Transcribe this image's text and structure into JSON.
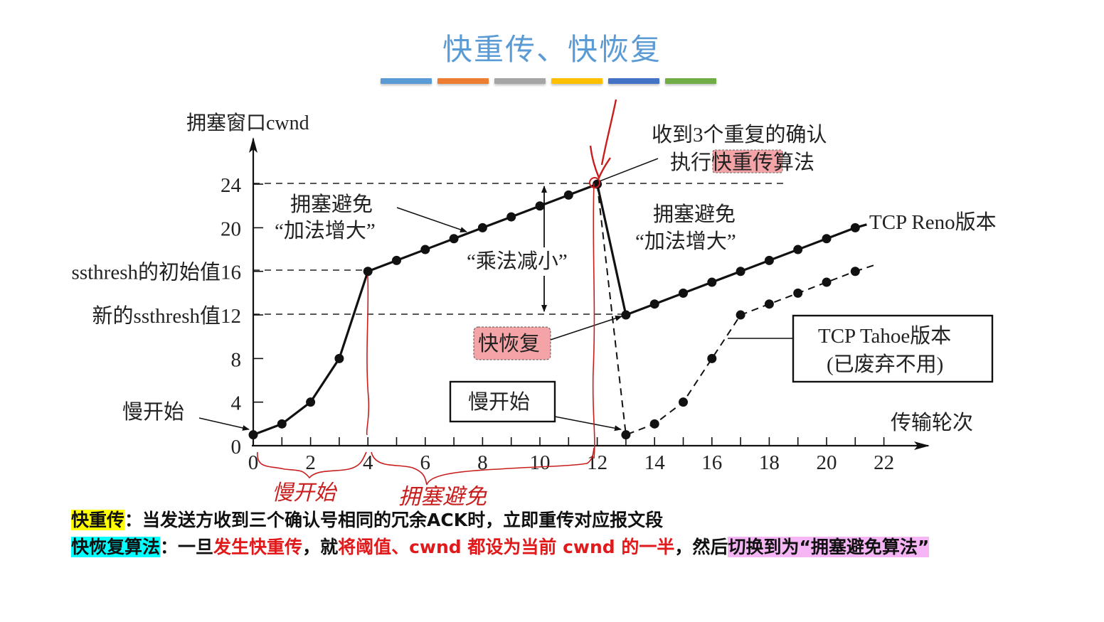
{
  "slide": {
    "title": "快重传、快恢复",
    "color_bars": [
      "#5b9bd5",
      "#ed7d31",
      "#a5a5a5",
      "#ffc000",
      "#4472c4",
      "#70ad47"
    ]
  },
  "chart_data": {
    "type": "line",
    "title": "快重传、快恢复",
    "ylabel": "拥塞窗口cwnd",
    "xlabel": "传输轮次",
    "xlim": [
      0,
      22
    ],
    "ylim": [
      0,
      24
    ],
    "x_ticks": [
      0,
      2,
      4,
      6,
      8,
      10,
      12,
      14,
      16,
      18,
      20,
      22
    ],
    "y_ticks": [
      0,
      4,
      8,
      12,
      16,
      20,
      24
    ],
    "y_tick_labels": [
      "0",
      "4",
      "8",
      "新的ssthresh值12",
      "ssthresh的初始值16",
      "20",
      "24"
    ],
    "reference_lines": [
      {
        "y": 24,
        "style": "dashed"
      },
      {
        "y": 16,
        "style": "dashed",
        "label": "ssthresh的初始值16"
      },
      {
        "y": 12,
        "style": "dashed",
        "label": "新的ssthresh值12"
      }
    ],
    "series": [
      {
        "name": "TCP Reno版本",
        "style": "solid",
        "points": [
          [
            0,
            1
          ],
          [
            1,
            2
          ],
          [
            2,
            4
          ],
          [
            3,
            8
          ],
          [
            4,
            16
          ],
          [
            5,
            17
          ],
          [
            6,
            18
          ],
          [
            7,
            19
          ],
          [
            8,
            20
          ],
          [
            9,
            21
          ],
          [
            10,
            22
          ],
          [
            11,
            23
          ],
          [
            12,
            24
          ],
          [
            13,
            12
          ],
          [
            14,
            13
          ],
          [
            15,
            14
          ],
          [
            16,
            15
          ],
          [
            17,
            16
          ],
          [
            18,
            17
          ],
          [
            19,
            18
          ],
          [
            20,
            19
          ],
          [
            21,
            20
          ]
        ]
      },
      {
        "name": "TCP Tahoe版本 (已废弃不用)",
        "style": "dashed",
        "points": [
          [
            12,
            24
          ],
          [
            13,
            1
          ],
          [
            14,
            2
          ],
          [
            15,
            4
          ],
          [
            16,
            8
          ],
          [
            17,
            12
          ],
          [
            18,
            13
          ],
          [
            19,
            14
          ],
          [
            20,
            15
          ],
          [
            21,
            16
          ]
        ]
      }
    ],
    "annotations": [
      {
        "text": "慢开始",
        "at": [
          0,
          1
        ]
      },
      {
        "text": "拥塞避免 “加法增大”",
        "at": [
          7,
          19
        ]
      },
      {
        "text": "“乘法减小”",
        "between": [
          24,
          12
        ],
        "x": 10.2
      },
      {
        "text": "收到3个重复的确认 执行快重传算法",
        "at": [
          12,
          24
        ],
        "highlight": "快重传"
      },
      {
        "text": "拥塞避免 “加法增大”",
        "at": [
          15,
          20
        ]
      },
      {
        "text": "快恢复",
        "at": [
          13,
          12
        ],
        "highlight": true
      },
      {
        "text": "慢开始",
        "at": [
          13,
          1
        ],
        "boxed": true
      },
      {
        "text": "TCP Reno版本",
        "at": [
          21,
          20
        ]
      },
      {
        "text": "TCP Tahoe版本 (已废弃不用)",
        "at": [
          16.5,
          9
        ],
        "boxed": true
      }
    ],
    "handwritten_annotations": [
      {
        "text": "慢开始",
        "range": [
          0,
          4
        ],
        "color": "#c00000"
      },
      {
        "text": "拥塞避免",
        "range": [
          4,
          12
        ],
        "color": "#c00000"
      }
    ]
  },
  "labels": {
    "ylabel": "拥塞窗口cwnd",
    "xlabel": "传输轮次",
    "slow_start_left": "慢开始",
    "ca_left_1": "拥塞避免",
    "ca_left_2": "“加法增大”",
    "mult_decrease": "“乘法减小”",
    "dup_ack_1": "收到3个重复的确认",
    "dup_ack_2a": "执行",
    "dup_ack_2b": "快重传",
    "dup_ack_2c": "算法",
    "ca_right_1": "拥塞避免",
    "ca_right_2": "“加法增大”",
    "reno": "TCP Reno版本",
    "fast_recovery": "快恢复",
    "slow_start_box": "慢开始",
    "tahoe_1": "TCP Tahoe版本",
    "tahoe_2": "(已废弃不用)",
    "hw_slow_start": "慢开始",
    "hw_ca": "拥塞避免"
  },
  "footer": {
    "line1": {
      "term": "快重传",
      "colon": "：",
      "text": "当发送方收到三个确认号相同的冗余ACK时，立即重传对应报文段"
    },
    "line2": {
      "term": "快恢复算法",
      "colon": "：",
      "t1": "一旦",
      "r1": "发生快重传",
      "t2": "，就",
      "r2": "将阈值、cwnd 都设为当前 cwnd 的一半",
      "t3": "，然后",
      "pink": "切换到为“拥塞避免算法”"
    }
  }
}
